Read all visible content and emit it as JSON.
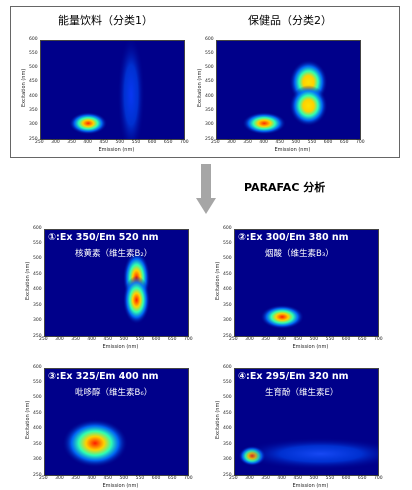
{
  "top": {
    "left_title": "能量饮料（分类1）",
    "right_title": "保健品（分类2）"
  },
  "arrow_label": "PARAFAC 分析",
  "components": [
    {
      "title": "①:Ex 350/Em 520 nm",
      "subtitle": "核黄素（维生素B₂）"
    },
    {
      "title": "②:Ex 300/Em 380 nm",
      "subtitle": "烟酸（维生素B₃）"
    },
    {
      "title": "③:Ex 325/Em 400 nm",
      "subtitle": "吡哆醇（维生素B₆）"
    },
    {
      "title": "④:Ex 295/Em 320 nm",
      "subtitle": "生育酚（维生素E）"
    }
  ],
  "axes": {
    "x_label": "Emission (nm)",
    "y_label_top": "Excitation (nm)",
    "y_label": "Excitation (nm)",
    "x_ticks": [
      "250",
      "300",
      "350",
      "400",
      "450",
      "500",
      "550",
      "600",
      "650",
      "700"
    ],
    "y_ticks_top": [
      "250",
      "300",
      "350",
      "400",
      "450",
      "500",
      "550",
      "600"
    ],
    "y_ticks": [
      "250",
      "300",
      "350",
      "400",
      "450",
      "500",
      "550",
      "600"
    ]
  },
  "colors": {
    "plot_bg": "#00008a",
    "arrow": "#a6a6a6"
  }
}
